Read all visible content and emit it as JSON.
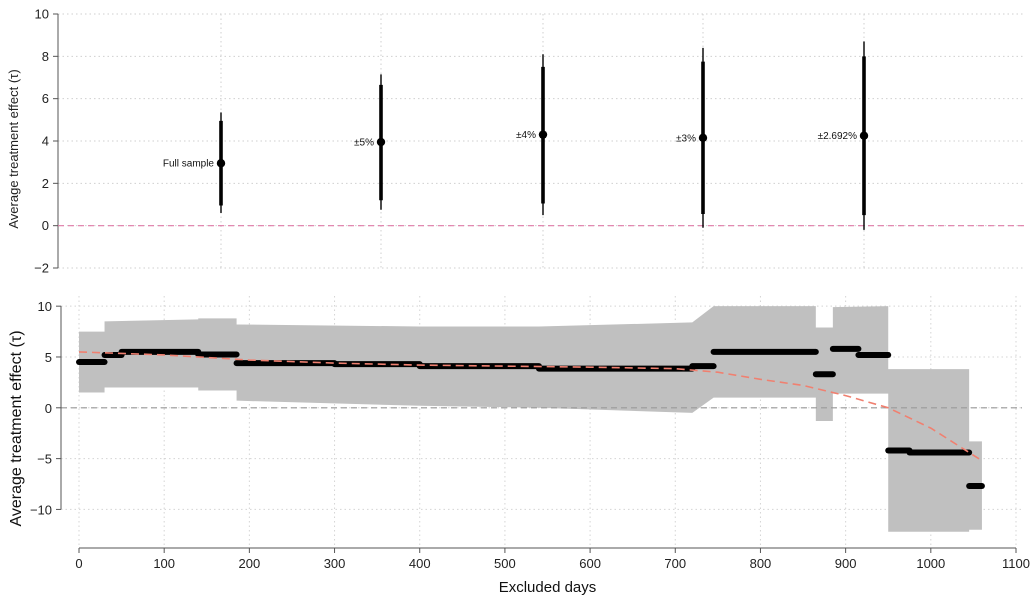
{
  "chart_data": [
    {
      "type": "scatter",
      "subtype": "point-estimates-with-confidence-intervals",
      "ylabel": "Average treatment effect (τ)",
      "ylim": [
        -2,
        10
      ],
      "yticks": [
        -2,
        0,
        2,
        4,
        6,
        8,
        10
      ],
      "grid": "dotted",
      "reference_line": {
        "y": 0,
        "color": "#e07aa8",
        "style": "dashed"
      },
      "point_color": "#000000",
      "points": [
        {
          "label": "Full sample",
          "estimate": 2.95,
          "ci_inner": [
            0.95,
            4.95
          ],
          "ci_outer": [
            0.6,
            5.35
          ]
        },
        {
          "label": "±5%",
          "estimate": 3.95,
          "ci_inner": [
            1.2,
            6.65
          ],
          "ci_outer": [
            0.75,
            7.15
          ]
        },
        {
          "label": "±4%",
          "estimate": 4.3,
          "ci_inner": [
            1.05,
            7.5
          ],
          "ci_outer": [
            0.5,
            8.1
          ]
        },
        {
          "label": "±3%",
          "estimate": 4.15,
          "ci_inner": [
            0.55,
            7.75
          ],
          "ci_outer": [
            -0.1,
            8.4
          ]
        },
        {
          "label": "±2.692%",
          "estimate": 4.25,
          "ci_inner": [
            0.5,
            8.0
          ],
          "ci_outer": [
            -0.2,
            8.7
          ]
        }
      ]
    },
    {
      "type": "line",
      "subtype": "step-estimate-with-confidence-band",
      "xlabel": "Excluded days",
      "ylabel": "Average treatment effect (τ)",
      "xlim": [
        0,
        1100
      ],
      "ylim": [
        -13.5,
        11
      ],
      "xticks": [
        0,
        100,
        200,
        300,
        400,
        500,
        600,
        700,
        800,
        900,
        1000,
        1100
      ],
      "yticks": [
        -10,
        -5,
        0,
        5,
        10
      ],
      "grid": "dotted",
      "reference_line": {
        "y": 0,
        "color": "#999999",
        "style": "dashed"
      },
      "colors": {
        "band": "#c0c0c0",
        "estimate": "#000000",
        "fit": "#f08070"
      },
      "estimate_segments": [
        {
          "x": [
            0,
            30
          ],
          "y": 4.5
        },
        {
          "x": [
            30,
            50
          ],
          "y": 5.2
        },
        {
          "x": [
            50,
            140
          ],
          "y": 5.5
        },
        {
          "x": [
            140,
            185
          ],
          "y": 5.25
        },
        {
          "x": [
            185,
            300
          ],
          "y": 4.4
        },
        {
          "x": [
            300,
            400
          ],
          "y": 4.3
        },
        {
          "x": [
            400,
            540
          ],
          "y": 4.1
        },
        {
          "x": [
            540,
            720
          ],
          "y": 3.85
        },
        {
          "x": [
            720,
            745
          ],
          "y": 4.1
        },
        {
          "x": [
            745,
            865
          ],
          "y": 5.5
        },
        {
          "x": [
            865,
            885
          ],
          "y": 3.3
        },
        {
          "x": [
            885,
            915
          ],
          "y": 5.8
        },
        {
          "x": [
            915,
            950
          ],
          "y": 5.2
        },
        {
          "x": [
            950,
            975
          ],
          "y": -4.2
        },
        {
          "x": [
            975,
            1045
          ],
          "y": -4.4
        },
        {
          "x": [
            1045,
            1060
          ],
          "y": -7.7
        }
      ],
      "confidence_band": [
        {
          "x": 0,
          "low": 1.5,
          "high": 7.5
        },
        {
          "x": 30,
          "low": 1.5,
          "high": 7.5
        },
        {
          "x": 30,
          "low": 2.0,
          "high": 8.5
        },
        {
          "x": 140,
          "low": 2.0,
          "high": 8.7
        },
        {
          "x": 140,
          "low": 1.7,
          "high": 8.8
        },
        {
          "x": 185,
          "low": 1.7,
          "high": 8.8
        },
        {
          "x": 185,
          "low": 0.7,
          "high": 8.2
        },
        {
          "x": 400,
          "low": 0.2,
          "high": 8.0
        },
        {
          "x": 540,
          "low": 0.0,
          "high": 8.0
        },
        {
          "x": 720,
          "low": -0.5,
          "high": 8.4
        },
        {
          "x": 745,
          "low": 1.0,
          "high": 10.0
        },
        {
          "x": 865,
          "low": 1.0,
          "high": 10.0
        },
        {
          "x": 865,
          "low": -1.3,
          "high": 7.9
        },
        {
          "x": 885,
          "low": -1.3,
          "high": 7.9
        },
        {
          "x": 885,
          "low": 1.4,
          "high": 9.9
        },
        {
          "x": 950,
          "low": 1.4,
          "high": 10.0
        },
        {
          "x": 950,
          "low": -12.2,
          "high": 3.8
        },
        {
          "x": 1045,
          "low": -12.2,
          "high": 3.8
        },
        {
          "x": 1045,
          "low": -12.0,
          "high": -3.3
        },
        {
          "x": 1060,
          "low": -12.0,
          "high": -3.3
        }
      ],
      "fit_curve": [
        {
          "x": 0,
          "y": 5.5
        },
        {
          "x": 100,
          "y": 5.2
        },
        {
          "x": 200,
          "y": 4.7
        },
        {
          "x": 300,
          "y": 4.4
        },
        {
          "x": 400,
          "y": 4.2
        },
        {
          "x": 500,
          "y": 4.1
        },
        {
          "x": 600,
          "y": 4.0
        },
        {
          "x": 700,
          "y": 3.85
        },
        {
          "x": 750,
          "y": 3.5
        },
        {
          "x": 800,
          "y": 2.8
        },
        {
          "x": 850,
          "y": 2.2
        },
        {
          "x": 900,
          "y": 1.2
        },
        {
          "x": 950,
          "y": 0.0
        },
        {
          "x": 1000,
          "y": -2.0
        },
        {
          "x": 1060,
          "y": -5.2
        }
      ]
    }
  ]
}
